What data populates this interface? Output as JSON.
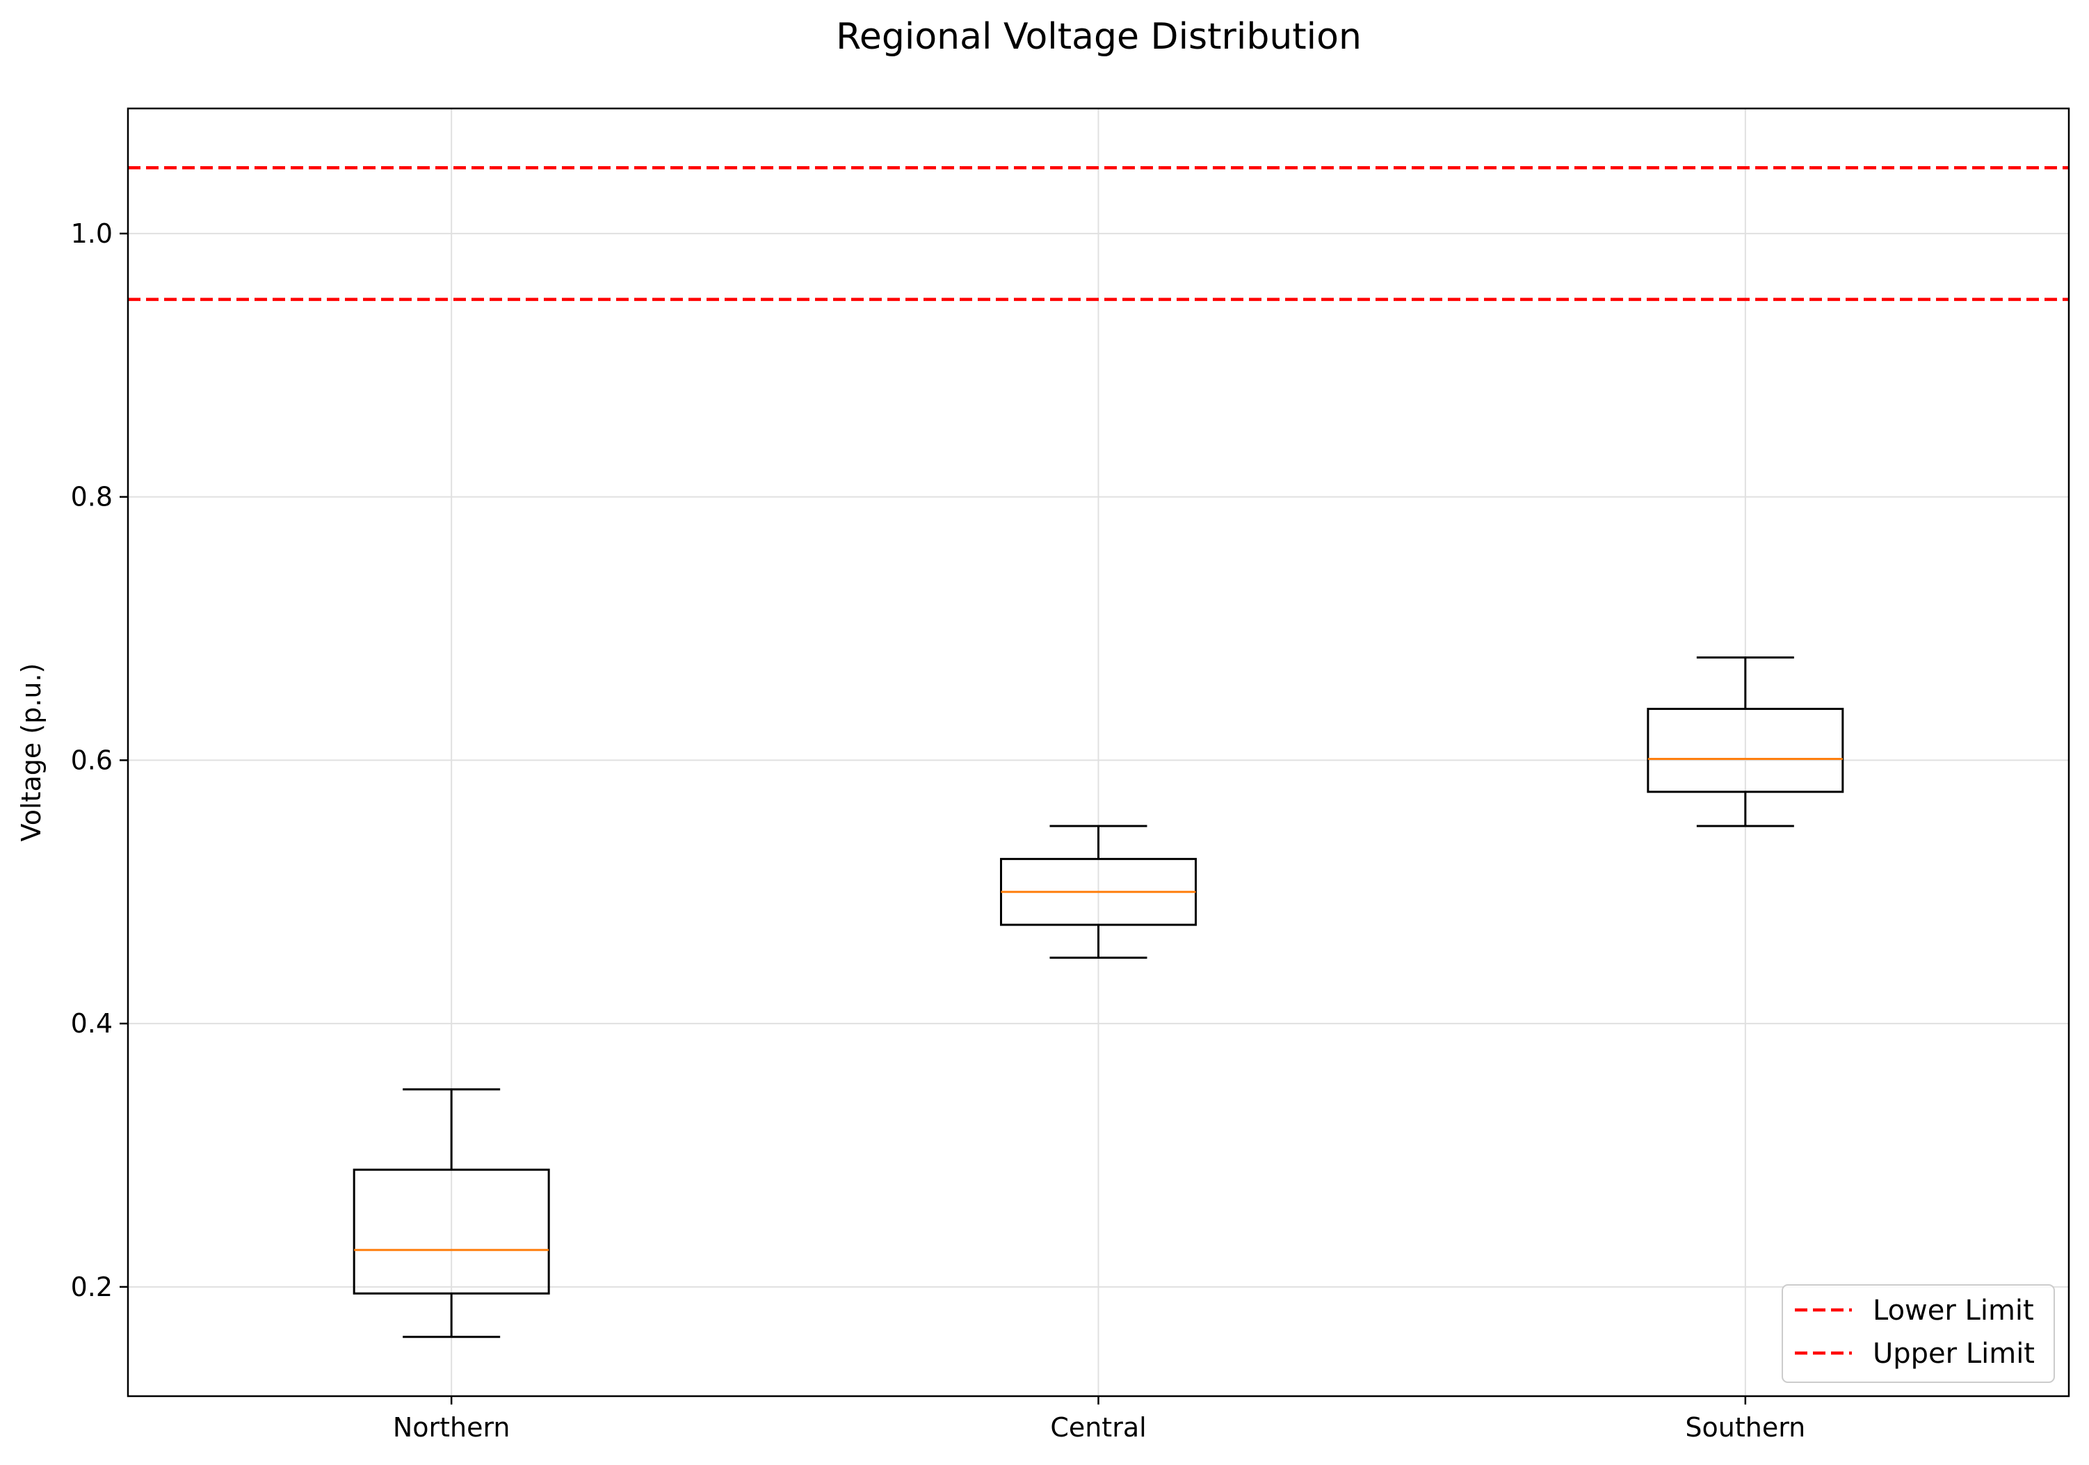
{
  "chart_data": {
    "type": "box",
    "title": "Regional Voltage Distribution",
    "xlabel": "",
    "ylabel": "Voltage (p.u.)",
    "ylim": [
      0.117,
      1.095
    ],
    "yticks": [
      0.2,
      0.4,
      0.6,
      0.8,
      1.0
    ],
    "ytick_labels": [
      "0.2",
      "0.4",
      "0.6",
      "0.8",
      "1.0"
    ],
    "grid": true,
    "categories": [
      "Northern",
      "Central",
      "Southern"
    ],
    "boxes": [
      {
        "category": "Northern",
        "whisker_low": 0.162,
        "q1": 0.195,
        "median": 0.228,
        "q3": 0.289,
        "whisker_high": 0.35
      },
      {
        "category": "Central",
        "whisker_low": 0.45,
        "q1": 0.475,
        "median": 0.5,
        "q3": 0.525,
        "whisker_high": 0.55
      },
      {
        "category": "Southern",
        "whisker_low": 0.55,
        "q1": 0.576,
        "median": 0.601,
        "q3": 0.639,
        "whisker_high": 0.678
      }
    ],
    "reference_lines": [
      {
        "name": "Lower Limit",
        "y": 1.05,
        "color": "#ff0000",
        "style": "dashed"
      },
      {
        "name": "Upper Limit",
        "y": 0.95,
        "color": "#ff0000",
        "style": "dashed"
      }
    ],
    "legend": {
      "placement": "lower-right",
      "entries": [
        "Lower Limit",
        "Upper Limit"
      ]
    },
    "colors": {
      "box": "#000000",
      "median": "#ff7f0e",
      "limit": "#ff0000",
      "grid": "#e0e0e0"
    }
  }
}
